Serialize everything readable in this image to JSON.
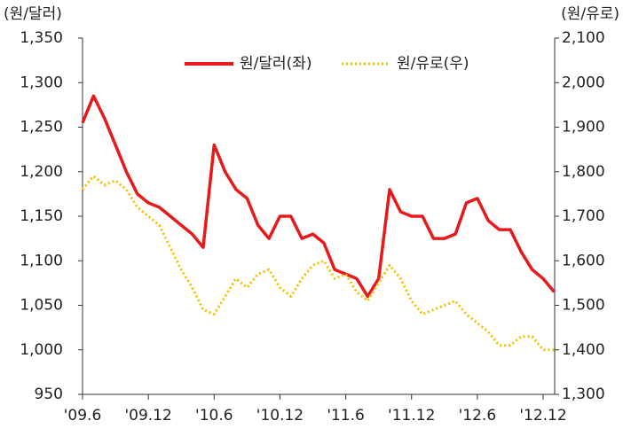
{
  "chart_data": {
    "type": "line",
    "y_label": "(원/달러)",
    "y2_label": "(원/유로)",
    "categories": [
      "'09.6",
      null,
      null,
      null,
      null,
      null,
      "'09.12",
      null,
      null,
      null,
      null,
      null,
      "'10.6",
      null,
      null,
      null,
      null,
      null,
      "'10.12",
      null,
      null,
      null,
      null,
      null,
      "'11.6",
      null,
      null,
      null,
      null,
      null,
      "'11.12",
      null,
      null,
      null,
      null,
      null,
      "'12.6",
      null,
      null,
      null,
      null,
      null,
      "'12.12",
      null
    ],
    "series": [
      {
        "name": "원/달러(좌)",
        "color": "#e8191a",
        "style": "solid",
        "values": [
          1255,
          1285,
          1260,
          1230,
          1200,
          1175,
          1165,
          1160,
          1150,
          1140,
          1130,
          1115,
          1230,
          1200,
          1180,
          1170,
          1140,
          1125,
          1150,
          1150,
          1125,
          1130,
          1120,
          1090,
          1085,
          1080,
          1060,
          1080,
          1180,
          1155,
          1150,
          1150,
          1125,
          1125,
          1130,
          1165,
          1170,
          1145,
          1135,
          1135,
          1110,
          1090,
          1080,
          1065
        ]
      },
      {
        "name": "원/유로(우)",
        "color": "#f5c000",
        "style": "dotted",
        "axis": "y2",
        "values": [
          1760,
          1790,
          1770,
          1780,
          1760,
          1720,
          1700,
          1680,
          1630,
          1580,
          1540,
          1490,
          1480,
          1520,
          1560,
          1540,
          1570,
          1580,
          1540,
          1520,
          1560,
          1590,
          1600,
          1560,
          1570,
          1530,
          1510,
          1550,
          1590,
          1560,
          1510,
          1480,
          1490,
          1500,
          1510,
          1480,
          1460,
          1440,
          1410,
          1410,
          1430,
          1430,
          1400,
          1400
        ]
      }
    ],
    "ylim": [
      950,
      1350
    ],
    "yticks": [
      950,
      {
        "value": 1000,
        "label": "1,000"
      },
      {
        "value": 1050,
        "label": "1,050"
      },
      {
        "value": 1100,
        "label": "1,100"
      },
      {
        "value": 1150,
        "label": "1,150"
      },
      {
        "value": 1200,
        "label": "1,200"
      },
      {
        "value": 1250,
        "label": "1,250"
      },
      {
        "value": 1300,
        "label": "1,300"
      },
      {
        "value": 1350,
        "label": "1,350"
      }
    ],
    "y2lim": [
      1300,
      2100
    ],
    "y2ticks": [
      {
        "value": 1300,
        "label": "1,300"
      },
      {
        "value": 1400,
        "label": "1,400"
      },
      {
        "value": 1500,
        "label": "1,500"
      },
      {
        "value": 1600,
        "label": "1,600"
      },
      {
        "value": 1700,
        "label": "1,700"
      },
      {
        "value": 1800,
        "label": "1,800"
      },
      {
        "value": 1900,
        "label": "1,900"
      },
      {
        "value": 2000,
        "label": "2,000"
      },
      {
        "value": 2100,
        "label": "2,100"
      }
    ],
    "grid": false,
    "legend": "top"
  }
}
